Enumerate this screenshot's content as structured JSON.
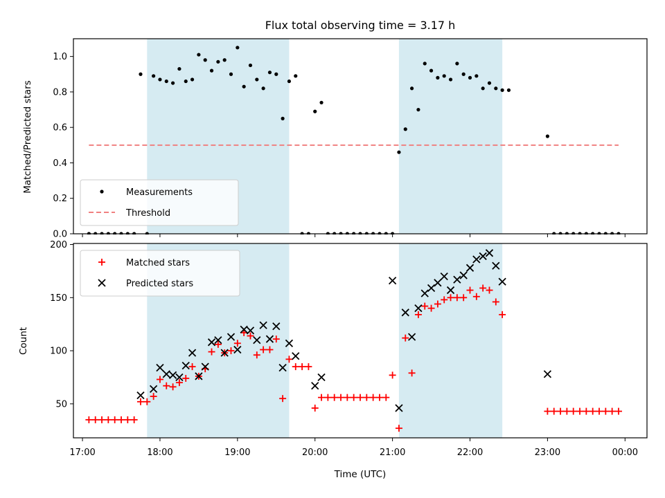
{
  "chart_data": [
    {
      "type": "scatter",
      "title": "Flux total observing time = 3.17 h",
      "ylabel": "Matched/Predicted stars",
      "xlim": [
        "16:53",
        "00:17"
      ],
      "ylim": [
        0,
        1.1
      ],
      "yticks": [
        0.0,
        0.2,
        0.4,
        0.6,
        0.8,
        1.0
      ],
      "ytick_labels": [
        "0.0",
        "0.2",
        "0.4",
        "0.6",
        "0.8",
        "1.0"
      ],
      "legend_position": "lower-left",
      "shaded_intervals": [
        [
          "17:50",
          "19:40"
        ],
        [
          "21:05",
          "22:25"
        ]
      ],
      "threshold": {
        "name": "Threshold",
        "value": 0.5,
        "x_start": "17:05",
        "x_end": "23:55",
        "color": "#f08080"
      },
      "series": [
        {
          "name": "Measurements",
          "marker": "dot",
          "color": "#000000",
          "points": [
            [
              "17:05",
              0
            ],
            [
              "17:10",
              0
            ],
            [
              "17:15",
              0
            ],
            [
              "17:20",
              0
            ],
            [
              "17:25",
              0
            ],
            [
              "17:30",
              0
            ],
            [
              "17:35",
              0
            ],
            [
              "17:40",
              0
            ],
            [
              "17:45",
              0.9
            ],
            [
              "17:50",
              0
            ],
            [
              "17:55",
              0.89
            ],
            [
              "18:00",
              0.87
            ],
            [
              "18:05",
              0.86
            ],
            [
              "18:10",
              0.85
            ],
            [
              "18:15",
              0.93
            ],
            [
              "18:20",
              0.86
            ],
            [
              "18:25",
              0.87
            ],
            [
              "18:30",
              1.01
            ],
            [
              "18:35",
              0.98
            ],
            [
              "18:40",
              0.92
            ],
            [
              "18:45",
              0.97
            ],
            [
              "18:50",
              0.98
            ],
            [
              "18:55",
              0.9
            ],
            [
              "19:00",
              1.05
            ],
            [
              "19:05",
              0.83
            ],
            [
              "19:10",
              0.95
            ],
            [
              "19:15",
              0.87
            ],
            [
              "19:20",
              0.82
            ],
            [
              "19:25",
              0.91
            ],
            [
              "19:30",
              0.9
            ],
            [
              "19:35",
              0.65
            ],
            [
              "19:40",
              0.86
            ],
            [
              "19:45",
              0.89
            ],
            [
              "19:50",
              0
            ],
            [
              "19:55",
              0
            ],
            [
              "20:00",
              0.69
            ],
            [
              "20:05",
              0.74
            ],
            [
              "20:10",
              0
            ],
            [
              "20:15",
              0
            ],
            [
              "20:20",
              0
            ],
            [
              "20:25",
              0
            ],
            [
              "20:30",
              0
            ],
            [
              "20:35",
              0
            ],
            [
              "20:40",
              0
            ],
            [
              "20:45",
              0
            ],
            [
              "20:50",
              0
            ],
            [
              "20:55",
              0
            ],
            [
              "21:00",
              0
            ],
            [
              "21:05",
              0.46
            ],
            [
              "21:10",
              0.59
            ],
            [
              "21:15",
              0.82
            ],
            [
              "21:20",
              0.7
            ],
            [
              "21:25",
              0.96
            ],
            [
              "21:30",
              0.92
            ],
            [
              "21:35",
              0.88
            ],
            [
              "21:40",
              0.89
            ],
            [
              "21:45",
              0.87
            ],
            [
              "21:50",
              0.96
            ],
            [
              "21:55",
              0.9
            ],
            [
              "22:00",
              0.88
            ],
            [
              "22:05",
              0.89
            ],
            [
              "22:10",
              0.82
            ],
            [
              "22:15",
              0.85
            ],
            [
              "22:20",
              0.82
            ],
            [
              "22:25",
              0.81
            ],
            [
              "22:30",
              0.81
            ],
            [
              "23:00",
              0.55
            ],
            [
              "23:05",
              0
            ],
            [
              "23:10",
              0
            ],
            [
              "23:15",
              0
            ],
            [
              "23:20",
              0
            ],
            [
              "23:25",
              0
            ],
            [
              "23:30",
              0
            ],
            [
              "23:35",
              0
            ],
            [
              "23:40",
              0
            ],
            [
              "23:45",
              0
            ],
            [
              "23:50",
              0
            ],
            [
              "23:55",
              0
            ]
          ]
        }
      ]
    },
    {
      "type": "scatter",
      "xlabel": "Time (UTC)",
      "ylabel": "Count",
      "xlim": [
        "16:53",
        "00:17"
      ],
      "ylim": [
        18,
        201
      ],
      "xticks": [
        "17:00",
        "18:00",
        "19:00",
        "20:00",
        "21:00",
        "22:00",
        "23:00",
        "00:00"
      ],
      "yticks": [
        50,
        100,
        150,
        200
      ],
      "legend_position": "top-left",
      "shaded_intervals": [
        [
          "17:50",
          "19:40"
        ],
        [
          "21:05",
          "22:25"
        ]
      ],
      "series": [
        {
          "name": "Matched stars",
          "marker": "plus",
          "color": "#ff0000",
          "points": [
            [
              "17:05",
              35
            ],
            [
              "17:10",
              35
            ],
            [
              "17:15",
              35
            ],
            [
              "17:20",
              35
            ],
            [
              "17:25",
              35
            ],
            [
              "17:30",
              35
            ],
            [
              "17:35",
              35
            ],
            [
              "17:40",
              35
            ],
            [
              "17:45",
              52
            ],
            [
              "17:50",
              52
            ],
            [
              "17:55",
              57
            ],
            [
              "18:00",
              73
            ],
            [
              "18:05",
              67
            ],
            [
              "18:10",
              66
            ],
            [
              "18:15",
              70
            ],
            [
              "18:20",
              74
            ],
            [
              "18:25",
              85
            ],
            [
              "18:30",
              76
            ],
            [
              "18:35",
              83
            ],
            [
              "18:40",
              99
            ],
            [
              "18:45",
              106
            ],
            [
              "18:50",
              98
            ],
            [
              "18:55",
              100
            ],
            [
              "19:00",
              107
            ],
            [
              "19:05",
              117
            ],
            [
              "19:10",
              114
            ],
            [
              "19:15",
              96
            ],
            [
              "19:20",
              101
            ],
            [
              "19:25",
              101
            ],
            [
              "19:30",
              111
            ],
            [
              "19:35",
              55
            ],
            [
              "19:40",
              92
            ],
            [
              "19:45",
              85
            ],
            [
              "19:50",
              85
            ],
            [
              "19:55",
              85
            ],
            [
              "20:00",
              46
            ],
            [
              "20:05",
              56
            ],
            [
              "20:10",
              56
            ],
            [
              "20:15",
              56
            ],
            [
              "20:20",
              56
            ],
            [
              "20:25",
              56
            ],
            [
              "20:30",
              56
            ],
            [
              "20:35",
              56
            ],
            [
              "20:40",
              56
            ],
            [
              "20:45",
              56
            ],
            [
              "20:50",
              56
            ],
            [
              "20:55",
              56
            ],
            [
              "21:00",
              77
            ],
            [
              "21:05",
              27
            ],
            [
              "21:10",
              112
            ],
            [
              "21:15",
              79
            ],
            [
              "21:20",
              134
            ],
            [
              "21:25",
              142
            ],
            [
              "21:30",
              140
            ],
            [
              "21:35",
              144
            ],
            [
              "21:40",
              148
            ],
            [
              "21:45",
              150
            ],
            [
              "21:50",
              150
            ],
            [
              "21:55",
              150
            ],
            [
              "22:00",
              157
            ],
            [
              "22:05",
              151
            ],
            [
              "22:10",
              159
            ],
            [
              "22:15",
              157
            ],
            [
              "22:20",
              146
            ],
            [
              "22:25",
              134
            ],
            [
              "23:00",
              43
            ],
            [
              "23:05",
              43
            ],
            [
              "23:10",
              43
            ],
            [
              "23:15",
              43
            ],
            [
              "23:20",
              43
            ],
            [
              "23:25",
              43
            ],
            [
              "23:30",
              43
            ],
            [
              "23:35",
              43
            ],
            [
              "23:40",
              43
            ],
            [
              "23:45",
              43
            ],
            [
              "23:50",
              43
            ],
            [
              "23:55",
              43
            ]
          ]
        },
        {
          "name": "Predicted stars",
          "marker": "x",
          "color": "#000000",
          "points": [
            [
              "17:45",
              58
            ],
            [
              "17:55",
              64
            ],
            [
              "18:00",
              84
            ],
            [
              "18:05",
              78
            ],
            [
              "18:10",
              77
            ],
            [
              "18:15",
              75
            ],
            [
              "18:20",
              86
            ],
            [
              "18:25",
              98
            ],
            [
              "18:30",
              76
            ],
            [
              "18:35",
              85
            ],
            [
              "18:40",
              108
            ],
            [
              "18:45",
              110
            ],
            [
              "18:50",
              98
            ],
            [
              "18:55",
              113
            ],
            [
              "19:00",
              101
            ],
            [
              "19:05",
              120
            ],
            [
              "19:10",
              119
            ],
            [
              "19:15",
              110
            ],
            [
              "19:20",
              124
            ],
            [
              "19:25",
              111
            ],
            [
              "19:30",
              123
            ],
            [
              "19:35",
              84
            ],
            [
              "19:40",
              107
            ],
            [
              "19:45",
              95
            ],
            [
              "20:00",
              67
            ],
            [
              "20:05",
              75
            ],
            [
              "21:00",
              166
            ],
            [
              "21:05",
              46
            ],
            [
              "21:10",
              136
            ],
            [
              "21:15",
              113
            ],
            [
              "21:20",
              140
            ],
            [
              "21:25",
              154
            ],
            [
              "21:30",
              159
            ],
            [
              "21:35",
              164
            ],
            [
              "21:40",
              170
            ],
            [
              "21:45",
              157
            ],
            [
              "21:50",
              167
            ],
            [
              "21:55",
              171
            ],
            [
              "22:00",
              178
            ],
            [
              "22:05",
              186
            ],
            [
              "22:10",
              189
            ],
            [
              "22:15",
              192
            ],
            [
              "22:20",
              180
            ],
            [
              "22:25",
              165
            ],
            [
              "23:00",
              78
            ]
          ]
        }
      ]
    }
  ]
}
